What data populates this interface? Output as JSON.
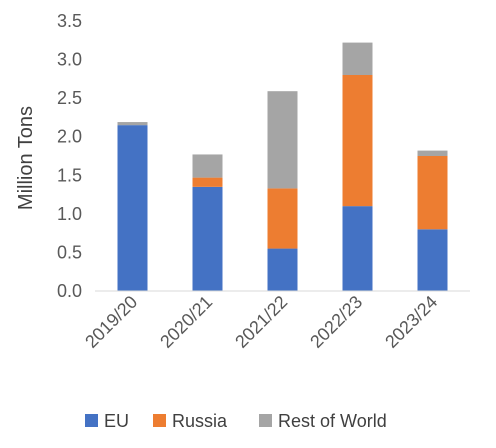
{
  "chart_data": {
    "type": "bar",
    "stacked": true,
    "categories": [
      "2019/20",
      "2020/21",
      "2021/22",
      "2022/23",
      "2023/24"
    ],
    "series": [
      {
        "name": "EU",
        "color": "#4472C4",
        "values": [
          2.15,
          1.35,
          0.55,
          1.1,
          0.8
        ]
      },
      {
        "name": "Russia",
        "color": "#ED7D31",
        "values": [
          0.0,
          0.12,
          0.78,
          1.7,
          0.95
        ]
      },
      {
        "name": "Rest of World",
        "color": "#A5A5A5",
        "values": [
          0.04,
          0.3,
          1.26,
          0.42,
          0.07
        ]
      }
    ],
    "ylabel": "Million Tons",
    "xlabel": "",
    "title": "",
    "ylim": [
      0,
      3.5
    ],
    "yticks": [
      "0.0",
      "0.5",
      "1.0",
      "1.5",
      "2.0",
      "2.5",
      "3.0",
      "3.5"
    ],
    "grid": false,
    "legend": "bottom"
  }
}
